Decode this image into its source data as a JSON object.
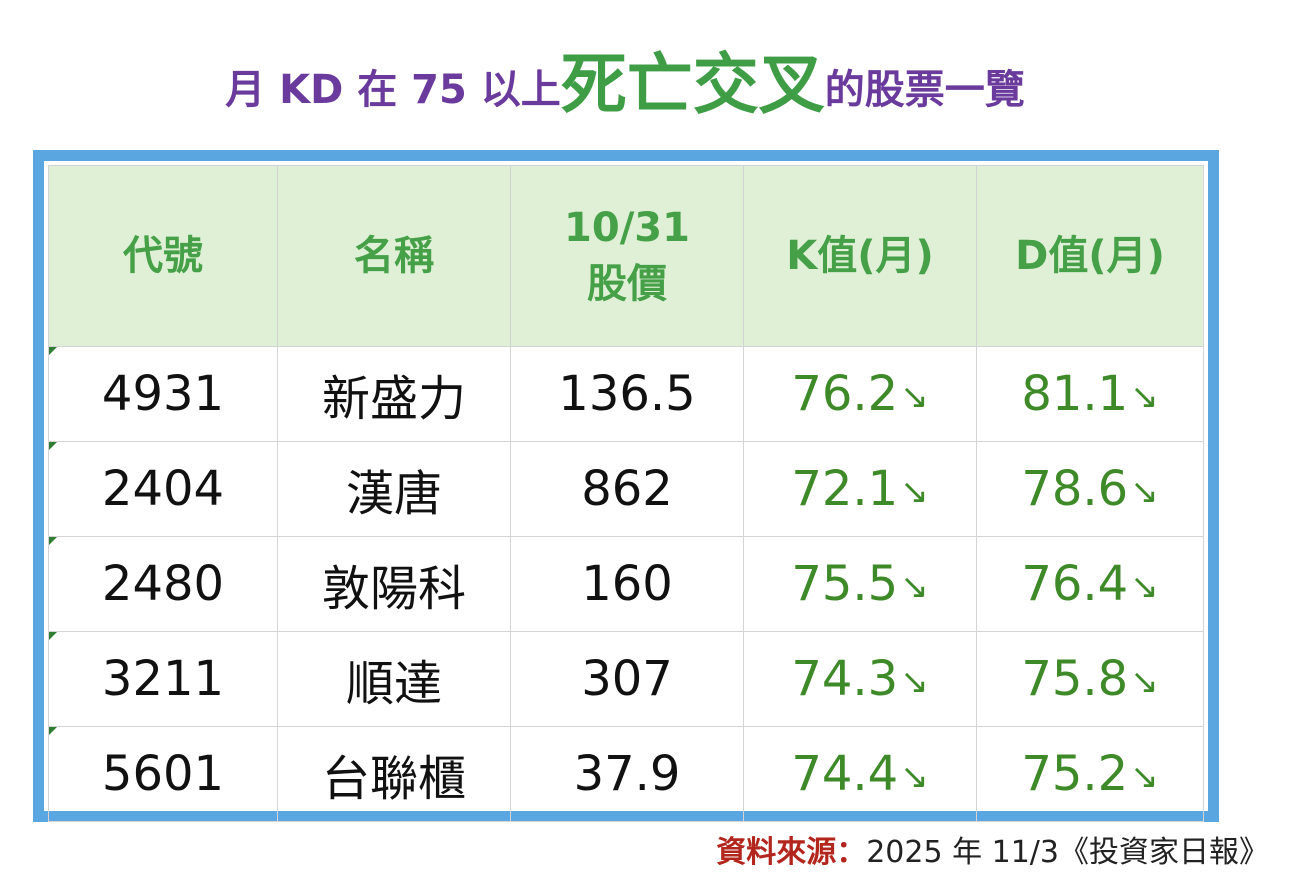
{
  "title": {
    "part1": "月 KD 在 75 以上",
    "highlight": "死亡交叉",
    "part2": "的股票一覽"
  },
  "table": {
    "headers": [
      {
        "line1": "代號",
        "line2": ""
      },
      {
        "line1": "名稱",
        "line2": ""
      },
      {
        "line1": "10/31",
        "line2": "股價"
      },
      {
        "line1": "K值(月)",
        "line2": ""
      },
      {
        "line1": "D值(月)",
        "line2": ""
      }
    ],
    "rows": [
      {
        "code": "4931",
        "name": "新盛力",
        "price": "136.5",
        "k": "76.2",
        "d": "81.1"
      },
      {
        "code": "2404",
        "name": "漢唐",
        "price": "862",
        "k": "72.1",
        "d": "78.6"
      },
      {
        "code": "2480",
        "name": "敦陽科",
        "price": "160",
        "k": "75.5",
        "d": "76.4"
      },
      {
        "code": "3211",
        "name": "順達",
        "price": "307",
        "k": "74.3",
        "d": "75.8"
      },
      {
        "code": "5601",
        "name": "台聯櫃",
        "price": "37.9",
        "k": "74.4",
        "d": "75.2"
      }
    ],
    "trend_arrow": "↘"
  },
  "source": {
    "label": "資料來源：",
    "text": "2025 年 11/3《投資家日報》"
  },
  "colors": {
    "title_purple": "#6a3b9c",
    "title_green": "#3f9d46",
    "frame_blue": "#5aa6e0",
    "header_bg": "#dff0d6",
    "header_text": "#45a048",
    "value_green": "#3e8a28",
    "source_label_red": "#b3261e"
  }
}
